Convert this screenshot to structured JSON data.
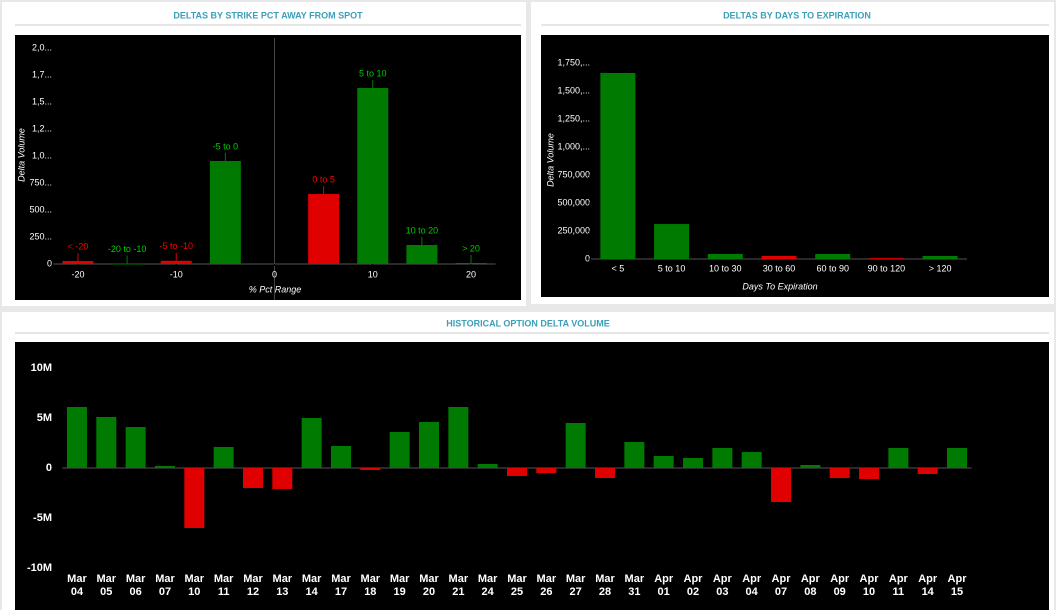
{
  "chart_data": [
    {
      "type": "bar",
      "title": "DELTAS BY STRIKE PCT AWAY FROM SPOT",
      "x_label": "% Pct Range",
      "y_label": "Delta Volume",
      "x": [
        -20,
        -15,
        -10,
        -5,
        5,
        10,
        15,
        20
      ],
      "point_labels": [
        "< -20",
        "-20 to -10",
        "-5 to -10",
        "-5 to 0",
        "0 to 5",
        "5 to 10",
        "10 to 20",
        "> 20"
      ],
      "values": [
        28000,
        5000,
        30000,
        954000,
        648000,
        1630000,
        176000,
        9000
      ],
      "colors": [
        "#e00000",
        "#007a00",
        "#e00000",
        "#007a00",
        "#e00000",
        "#007a00",
        "#007a00",
        "#007a00"
      ],
      "xlim": [
        -22.5,
        22.5
      ],
      "xticks": [
        -20,
        -10,
        0,
        10,
        20
      ],
      "zero_line": true,
      "ylim": [
        0,
        2100000
      ],
      "yticks": [
        0,
        {
          "value": 250000,
          "label": "250..."
        },
        {
          "value": 500000,
          "label": "500..."
        },
        {
          "value": 750000,
          "label": "750..."
        },
        {
          "value": 1000000,
          "label": "1,0..."
        },
        {
          "value": 1250000,
          "label": "1,2..."
        },
        {
          "value": 1500000,
          "label": "1,5..."
        },
        {
          "value": 1750000,
          "label": "1,7..."
        },
        {
          "value": 2000000,
          "label": "2,0..."
        }
      ]
    },
    {
      "type": "bar",
      "title": "DELTAS BY DAYS TO EXPIRATION",
      "x_label": "Days To Expiration",
      "y_label": "Delta Volume",
      "categories": [
        "< 5",
        "5 to 10",
        "10 to 30",
        "30 to 60",
        "60 to 90",
        "90 to 120",
        "> 120"
      ],
      "values": [
        1661000,
        312000,
        45000,
        27000,
        45000,
        8000,
        27000
      ],
      "colors": [
        "#007a00",
        "#007a00",
        "#007a00",
        "#e00000",
        "#007a00",
        "#e00000",
        "#007a00"
      ],
      "ylim": [
        0,
        1900000
      ],
      "yticks": [
        0,
        {
          "value": 250000,
          "label": "250,000"
        },
        {
          "value": 500000,
          "label": "500,000"
        },
        {
          "value": 750000,
          "label": "750,000"
        },
        {
          "value": 1000000,
          "label": "1,000,..."
        },
        {
          "value": 1250000,
          "label": "1,250,..."
        },
        {
          "value": 1500000,
          "label": "1,500,..."
        },
        {
          "value": 1750000,
          "label": "1,750,..."
        }
      ]
    },
    {
      "type": "bar",
      "title": "HISTORICAL OPTION DELTA VOLUME",
      "categories": [
        "Mar 04",
        "Mar 05",
        "Mar 06",
        "Mar 07",
        "Mar 10",
        "Mar 11",
        "Mar 12",
        "Mar 13",
        "Mar 14",
        "Mar 17",
        "Mar 18",
        "Mar 19",
        "Mar 20",
        "Mar 21",
        "Mar 24",
        "Mar 25",
        "Mar 26",
        "Mar 27",
        "Mar 28",
        "Mar 31",
        "Apr 01",
        "Apr 02",
        "Apr 03",
        "Apr 04",
        "Apr 07",
        "Apr 08",
        "Apr 09",
        "Apr 10",
        "Apr 11",
        "Apr 14",
        "Apr 15"
      ],
      "values": [
        6100000,
        5100000,
        4100000,
        200000,
        -6000000,
        2100000,
        -2000000,
        -2100000,
        5000000,
        2200000,
        -200000,
        3600000,
        4600000,
        6100000,
        400000,
        -800000,
        -500000,
        4500000,
        -1000000,
        2600000,
        1200000,
        1000000,
        2000000,
        1600000,
        -3400000,
        300000,
        -1000000,
        -1100000,
        2000000,
        -600000,
        2000000
      ],
      "positive_color": "#007a00",
      "negative_color": "#e00000",
      "ylim": [
        -10500000,
        10500000
      ],
      "yticks": [
        {
          "value": -10000000,
          "label": "-10M"
        },
        {
          "value": -5000000,
          "label": "-5M"
        },
        0,
        {
          "value": 5000000,
          "label": "5M"
        },
        {
          "value": 10000000,
          "label": "10M"
        }
      ]
    }
  ]
}
